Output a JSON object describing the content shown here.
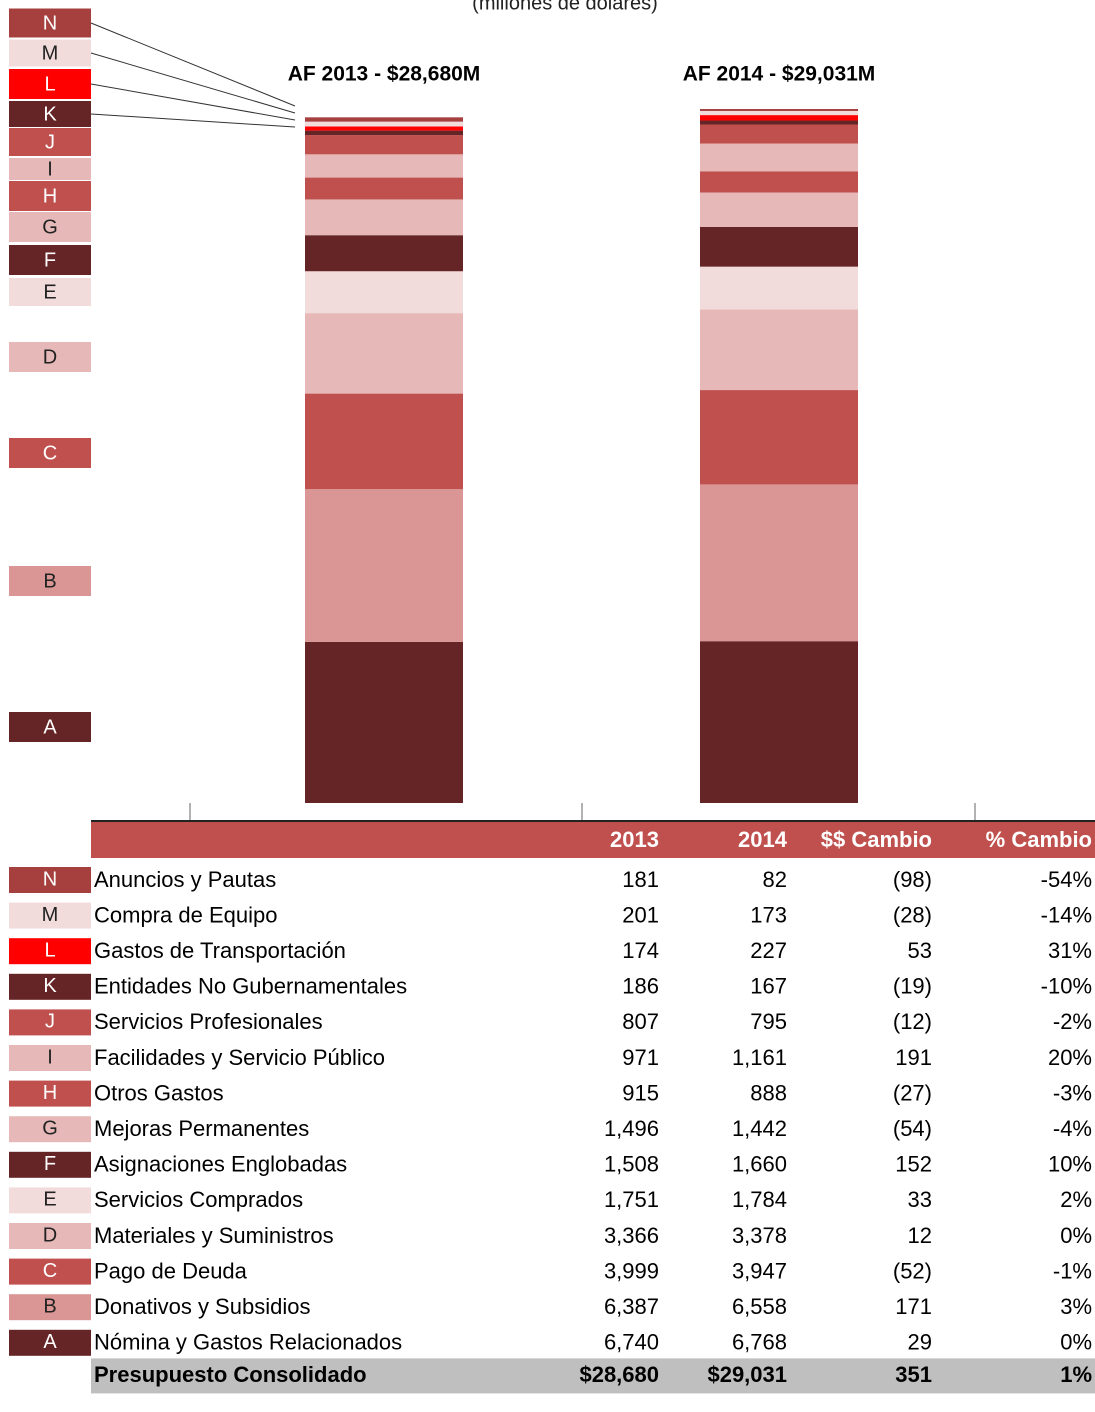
{
  "chart_data": {
    "type": "bar",
    "stacked": true,
    "subtitle": "(millones de dólares)",
    "categories": [
      "AF 2013 - $28,680M",
      "AF 2014 - $29,031M"
    ],
    "series": [
      {
        "name": "A",
        "description": "Nómina y Gastos Relacionados",
        "color": "#652426",
        "values": [
          6740,
          6768
        ],
        "value_labels": [
          "6,740",
          "6,768"
        ],
        "change": "29",
        "pct_change": "0%"
      },
      {
        "name": "B",
        "description": "Donativos y Subsidios",
        "color": "#d99694",
        "values": [
          6387,
          6558
        ],
        "value_labels": [
          "6,387",
          "6,558"
        ],
        "change": "171",
        "pct_change": "3%"
      },
      {
        "name": "C",
        "description": "Pago de Deuda",
        "color": "#c0504d",
        "values": [
          3999,
          3947
        ],
        "value_labels": [
          "3,999",
          "3,947"
        ],
        "change": "(52)",
        "pct_change": "-1%"
      },
      {
        "name": "D",
        "description": "Materiales y Suministros",
        "color": "#e6b9b8",
        "values": [
          3366,
          3378
        ],
        "value_labels": [
          "3,366",
          "3,378"
        ],
        "change": "12",
        "pct_change": "0%"
      },
      {
        "name": "E",
        "description": "Servicios Comprados",
        "color": "#f2dcdb",
        "values": [
          1751,
          1784
        ],
        "value_labels": [
          "1,751",
          "1,784"
        ],
        "change": "33",
        "pct_change": "2%"
      },
      {
        "name": "F",
        "description": "Asignaciones Englobadas",
        "color": "#652426",
        "values": [
          1508,
          1660
        ],
        "value_labels": [
          "1,508",
          "1,660"
        ],
        "change": "152",
        "pct_change": "10%"
      },
      {
        "name": "G",
        "description": "Mejoras Permanentes",
        "color": "#e6b9b8",
        "values": [
          1496,
          1442
        ],
        "value_labels": [
          "1,496",
          "1,442"
        ],
        "change": "(54)",
        "pct_change": "-4%"
      },
      {
        "name": "H",
        "description": "Otros Gastos",
        "color": "#c0504d",
        "values": [
          915,
          888
        ],
        "value_labels": [
          "915",
          "888"
        ],
        "change": "(27)",
        "pct_change": "-3%"
      },
      {
        "name": "I",
        "description": "Facilidades y Servicio Público",
        "color": "#e6b9b8",
        "values": [
          971,
          1161
        ],
        "value_labels": [
          "971",
          "1,161"
        ],
        "change": "191",
        "pct_change": "20%"
      },
      {
        "name": "J",
        "description": "Servicios Profesionales",
        "color": "#c0504d",
        "values": [
          807,
          795
        ],
        "value_labels": [
          "807",
          "795"
        ],
        "change": "(12)",
        "pct_change": "-2%"
      },
      {
        "name": "K",
        "description": "Entidades No Gubernamentales",
        "color": "#652426",
        "values": [
          186,
          167
        ],
        "value_labels": [
          "186",
          "167"
        ],
        "change": "(19)",
        "pct_change": "-10%"
      },
      {
        "name": "L",
        "description": "Gastos de Transportación",
        "color": "#ff0000",
        "values": [
          174,
          227
        ],
        "value_labels": [
          "174",
          "227"
        ],
        "change": "53",
        "pct_change": "31%"
      },
      {
        "name": "M",
        "description": "Compra de Equipo",
        "color": "#f2dcdb",
        "values": [
          201,
          173
        ],
        "value_labels": [
          "201",
          "173"
        ],
        "change": "(28)",
        "pct_change": "-14%"
      },
      {
        "name": "N",
        "description": "Anuncios y Pautas",
        "color": "#a5403e",
        "values": [
          181,
          82
        ],
        "value_labels": [
          "181",
          "82"
        ],
        "change": "(98)",
        "pct_change": "-54%"
      }
    ]
  },
  "table": {
    "header": [
      "2013",
      "2014",
      "$$ Cambio",
      "% Cambio"
    ],
    "total": [
      "Presupuesto Consolidado",
      "$28,680",
      "$29,031",
      "351",
      "1%"
    ]
  }
}
